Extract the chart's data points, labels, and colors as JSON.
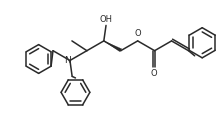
{
  "bg_color": "#ffffff",
  "line_color": "#2a2a2a",
  "line_width": 1.1,
  "figsize": [
    2.24,
    1.32
  ],
  "dpi": 100,
  "xlim": [
    0,
    10
  ],
  "ylim": [
    0,
    5.9
  ]
}
